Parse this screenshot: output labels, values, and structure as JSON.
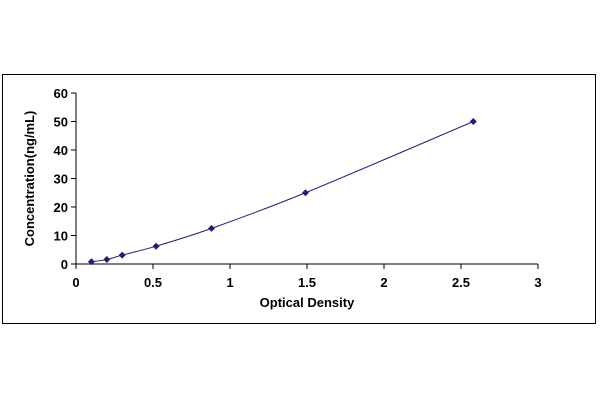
{
  "chart_data": {
    "type": "scatter",
    "title": "",
    "xlabel": "Optical Density",
    "ylabel": "Concentration(ng/mL)",
    "xlim": [
      0,
      3
    ],
    "ylim": [
      0,
      60
    ],
    "x_ticks": [
      "0",
      "0.5",
      "1",
      "1.5",
      "2",
      "2.5",
      "3"
    ],
    "y_ticks": [
      "0",
      "10",
      "20",
      "30",
      "40",
      "50",
      "60"
    ],
    "grid": false,
    "legend": "none",
    "marker_color": "#1f1f7a",
    "line_color": "#1f1f7a",
    "series": [
      {
        "x": [
          0.1,
          0.2,
          0.3,
          0.52,
          0.88,
          1.49,
          2.58
        ],
        "y": [
          0.78,
          1.56,
          3.13,
          6.25,
          12.5,
          25,
          50
        ]
      }
    ]
  }
}
